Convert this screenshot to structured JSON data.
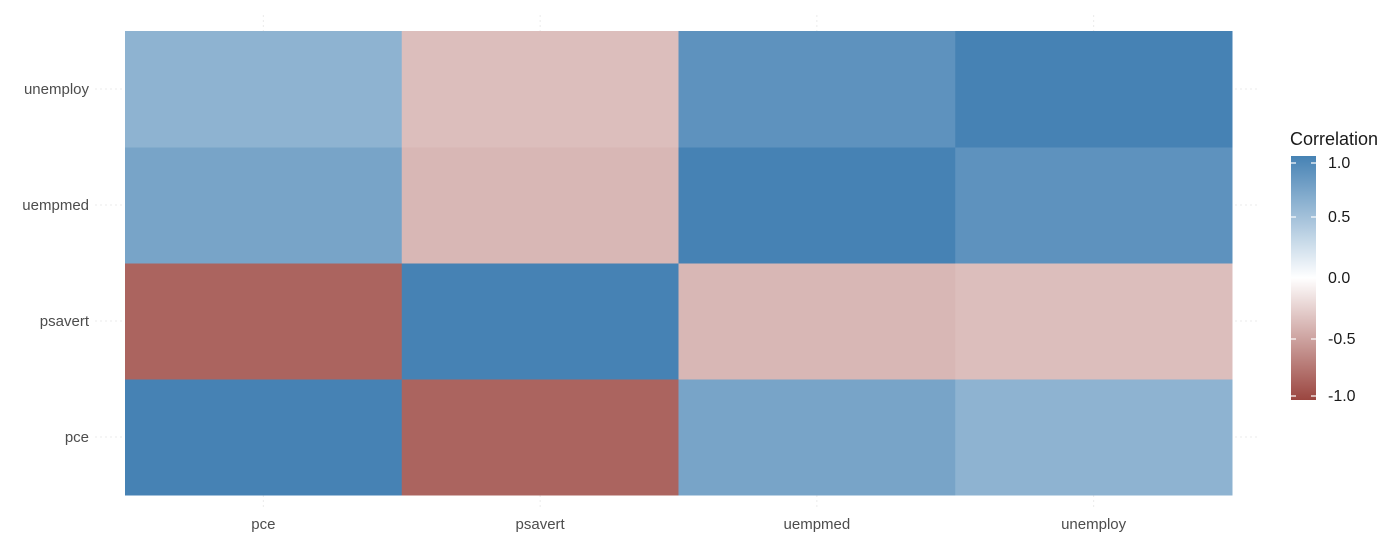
{
  "chart_data": {
    "type": "heatmap",
    "x_categories": [
      "pce",
      "psavert",
      "uempmed",
      "unemploy"
    ],
    "y_categories": [
      "pce",
      "psavert",
      "uempmed",
      "unemploy"
    ],
    "values": [
      [
        1.0,
        -0.84,
        0.73,
        0.61
      ],
      [
        -0.84,
        1.0,
        -0.39,
        -0.35
      ],
      [
        0.73,
        -0.39,
        1.0,
        0.87
      ],
      [
        0.61,
        -0.35,
        0.87,
        1.0
      ]
    ],
    "legend": {
      "title": "Correlation",
      "range": [
        -1,
        1
      ],
      "ticks": [
        1.0,
        0.5,
        0.0,
        -0.5,
        -1.0
      ],
      "tick_labels": [
        "1.0",
        "0.5",
        "0.0",
        "-0.5",
        "-1.0"
      ],
      "placement": "right"
    },
    "colors": {
      "low": "#9b4640",
      "mid": "#ffffff",
      "high": "#4682b4"
    },
    "grid": true
  }
}
